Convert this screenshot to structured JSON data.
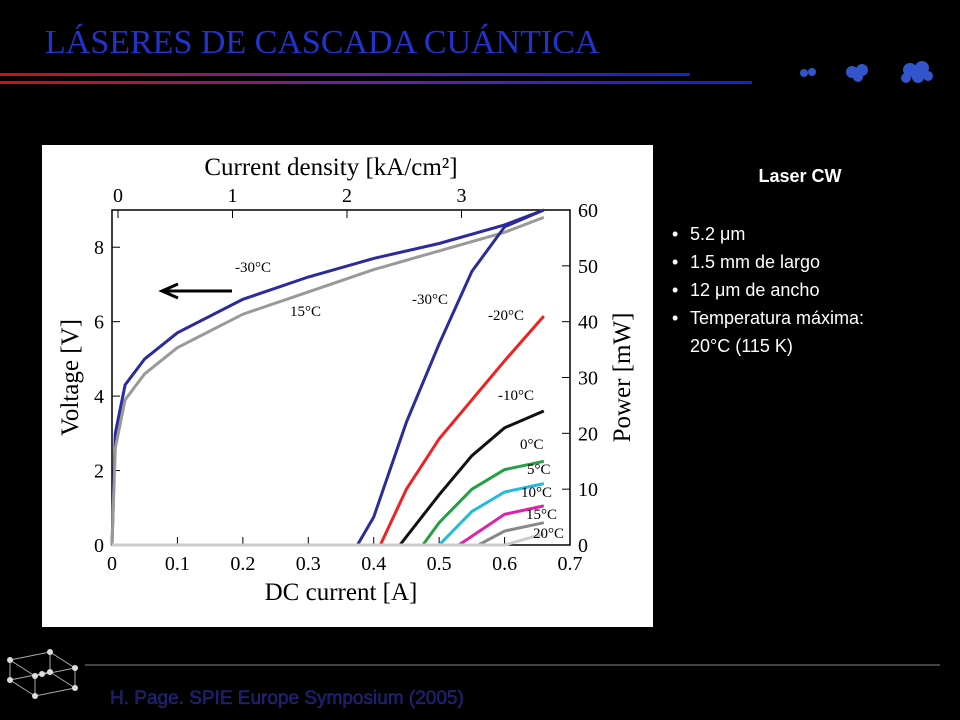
{
  "slide": {
    "title": "LÁSERES DE CASCADA CUÁNTICA",
    "panel_title": "Laser CW",
    "bullets": [
      "5.2 μm",
      "1.5 mm de largo",
      "12 μm de ancho",
      "Temperatura máxima: 20°C (115 K)"
    ],
    "citation": "H. Page. SPIE Europe Symposium (2005)"
  },
  "chart_data": {
    "type": "line",
    "x_label": "DC current [A]",
    "y_label": "Voltage [V]",
    "y2_label": "Power [mW]",
    "x2_label": "Current density [kA/cm²]",
    "xlim": [
      0,
      0.7
    ],
    "xticks": [
      0,
      0.1,
      0.2,
      0.3,
      0.4,
      0.5,
      0.6,
      0.7
    ],
    "x2lim": [
      0,
      4
    ],
    "x2ticks": [
      0,
      1,
      2,
      3
    ],
    "ylim": [
      0,
      9
    ],
    "yticks": [
      0,
      2,
      4,
      6,
      8
    ],
    "y2lim": [
      0,
      60
    ],
    "y2ticks": [
      0,
      10,
      20,
      30,
      40,
      50,
      60
    ],
    "series": [
      {
        "name": "-30°C",
        "color": "#2b2b9b",
        "axis": "y",
        "x": [
          0,
          0.005,
          0.02,
          0.05,
          0.1,
          0.2,
          0.3,
          0.4,
          0.5,
          0.6,
          0.66
        ],
        "values": [
          0,
          3,
          4.3,
          5.0,
          5.7,
          6.6,
          7.2,
          7.7,
          8.1,
          8.6,
          9.0
        ]
      },
      {
        "name": "15°C",
        "color": "#999999",
        "axis": "y",
        "x": [
          0,
          0.005,
          0.02,
          0.05,
          0.1,
          0.2,
          0.3,
          0.4,
          0.5,
          0.6,
          0.66
        ],
        "values": [
          0,
          2.6,
          3.9,
          4.6,
          5.3,
          6.2,
          6.8,
          7.4,
          7.9,
          8.4,
          8.8
        ]
      },
      {
        "name": "-30°C",
        "color": "#2b2b9b",
        "axis": "y2",
        "x": [
          0,
          0.375,
          0.4,
          0.45,
          0.5,
          0.55,
          0.6,
          0.66
        ],
        "values": [
          0,
          0,
          5,
          22,
          36,
          49,
          57,
          60
        ]
      },
      {
        "name": "-20°C",
        "color": "#ee2222",
        "axis": "y2",
        "x": [
          0,
          0.41,
          0.45,
          0.5,
          0.55,
          0.6,
          0.66
        ],
        "values": [
          0,
          0,
          10,
          19,
          26,
          33,
          41
        ]
      },
      {
        "name": "-10°C",
        "color": "#111111",
        "axis": "y2",
        "x": [
          0,
          0.44,
          0.5,
          0.55,
          0.6,
          0.66
        ],
        "values": [
          0,
          0,
          9,
          16,
          21,
          24
        ]
      },
      {
        "name": "0°C",
        "color": "#22a044",
        "axis": "y2",
        "x": [
          0,
          0.475,
          0.5,
          0.55,
          0.6,
          0.66
        ],
        "values": [
          0,
          0,
          4,
          10,
          13.5,
          15
        ]
      },
      {
        "name": "5°C",
        "color": "#22bbdd",
        "axis": "y2",
        "x": [
          0,
          0.5,
          0.55,
          0.6,
          0.66
        ],
        "values": [
          0,
          0,
          6,
          9.5,
          11
        ]
      },
      {
        "name": "10°C",
        "color": "#dd22aa",
        "axis": "y2",
        "x": [
          0,
          0.53,
          0.6,
          0.66
        ],
        "values": [
          0,
          0,
          5.5,
          7
        ]
      },
      {
        "name": "15°C",
        "color": "#888888",
        "axis": "y2",
        "x": [
          0,
          0.56,
          0.6,
          0.66
        ],
        "values": [
          0,
          0,
          2.5,
          4
        ]
      },
      {
        "name": "20°C",
        "color": "#cccccc",
        "axis": "y2",
        "x": [
          0,
          0.6,
          0.66
        ],
        "values": [
          0,
          0,
          2
        ]
      }
    ]
  }
}
